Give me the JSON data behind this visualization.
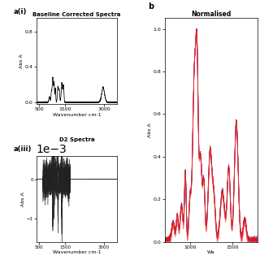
{
  "title_ai": "a(i)",
  "title_aiii": "a(iii)",
  "title_b": "b",
  "label_ai": "Baseline Corrected Spectra",
  "label_aiii": "D2 Spectra",
  "label_b": "Normalised",
  "ylabel": "Abs A",
  "xlabel": "Wavenumber cm-1",
  "bg_color": "#ffffff",
  "line_color_black": "#000000",
  "panel_b_xlim": [
    700,
    1800
  ],
  "panel_b_ylim": [
    0.0,
    1.05
  ],
  "panel_ai_xlim": [
    400,
    3500
  ],
  "panel_ai_ylim": [
    -0.02,
    0.95
  ],
  "panel_aiii_xlim": [
    400,
    3500
  ],
  "panel_aiii_ylim": [
    -0.0016,
    0.0006
  ],
  "blue_shades": [
    "#0000cc",
    "#3366ff",
    "#0099ff",
    "#6699ff"
  ],
  "red_shades": [
    "#cc0000",
    "#ff2222",
    "#ff6666",
    "#dd1111"
  ]
}
